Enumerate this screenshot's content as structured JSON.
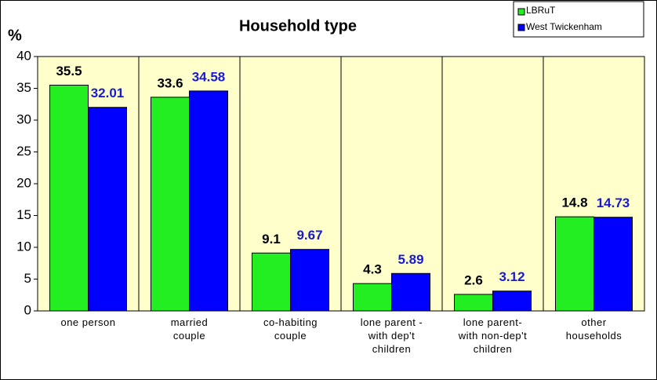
{
  "chart_data": {
    "type": "bar",
    "title": "Household type",
    "y_label": "%",
    "categories": [
      "one person",
      "married\ncouple",
      "co-habiting\ncouple",
      "lone parent -\nwith dep't\nchildren",
      "lone parent-\nwith non-dep't\nchildren",
      "other\nhouseholds"
    ],
    "series": [
      {
        "name": "LBRuT",
        "color": "#22ee22",
        "label_color": "#000000",
        "values": [
          35.5,
          33.6,
          9.1,
          4.3,
          2.6,
          14.8
        ]
      },
      {
        "name": "West Twickenham",
        "color": "#0000ff",
        "label_color": "#1a1acc",
        "values": [
          32.01,
          34.58,
          9.67,
          5.89,
          3.12,
          14.73
        ]
      }
    ],
    "ylim": [
      0,
      40
    ],
    "yticks": [
      0,
      5,
      10,
      15,
      20,
      25,
      30,
      35,
      40
    ]
  }
}
